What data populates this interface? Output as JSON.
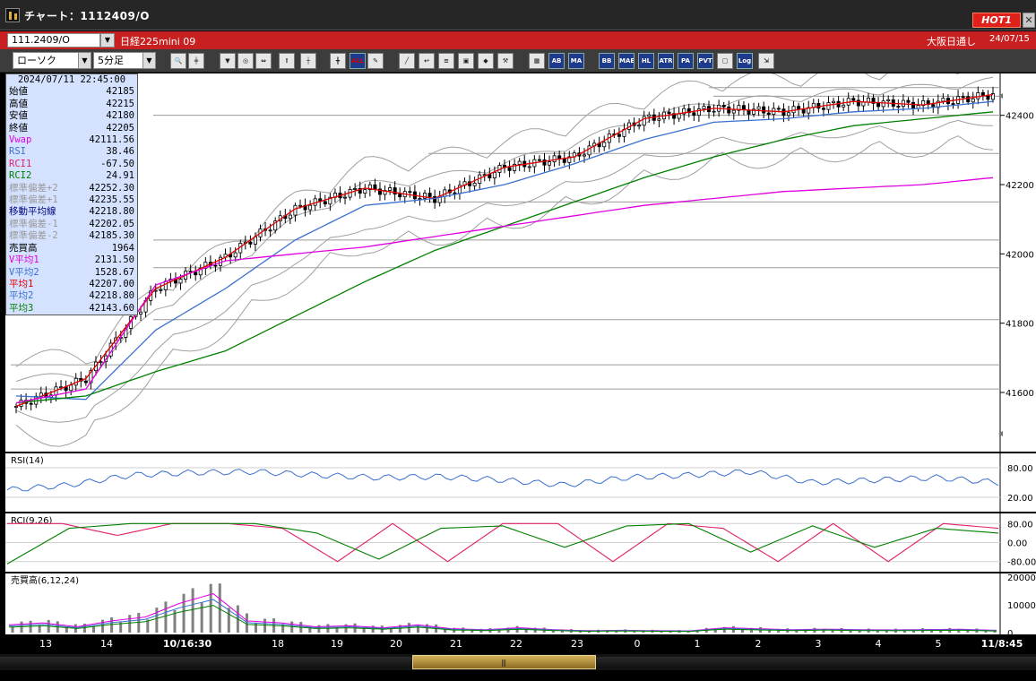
{
  "window": {
    "title": "チャート：1112409/O",
    "hot_badge": "HOT1",
    "close_glyph": "✕"
  },
  "symbol_bar": {
    "code": "111.2409/O",
    "name": "日経225mini 09",
    "session": "大阪日通し",
    "date": "24/07/15"
  },
  "toolbar": {
    "chart_type": "ローソク",
    "period": "5分足",
    "buttons": [
      {
        "name": "zoom-icon",
        "glyph": "🔍"
      },
      {
        "name": "crosshair-icon",
        "glyph": "╪"
      },
      {
        "name": "down-arrow-icon",
        "glyph": "▼"
      },
      {
        "name": "search-chart-icon",
        "glyph": "◎"
      },
      {
        "name": "fit-icon",
        "glyph": "⇔"
      },
      {
        "name": "info-icon",
        "glyph": "!"
      },
      {
        "name": "candle-add-icon",
        "glyph": "┼"
      },
      {
        "name": "candle-remove-icon",
        "glyph": "╋"
      },
      {
        "name": "all-button",
        "glyph": "ALL"
      },
      {
        "name": "pen-icon",
        "glyph": "✎"
      },
      {
        "name": "line-draw-icon",
        "glyph": "╱"
      },
      {
        "name": "return-icon",
        "glyph": "↩"
      },
      {
        "name": "list-icon",
        "glyph": "≡"
      },
      {
        "name": "trash-icon",
        "glyph": "▣"
      },
      {
        "name": "settings-icon",
        "glyph": "◆"
      },
      {
        "name": "tools-icon",
        "glyph": "⚒"
      },
      {
        "name": "color-icon",
        "glyph": "▦"
      },
      {
        "name": "ab-button",
        "glyph": "AB"
      },
      {
        "name": "ma-button",
        "glyph": "MA"
      },
      {
        "name": "bb-button",
        "glyph": "BB"
      },
      {
        "name": "mae-button",
        "glyph": "MAE"
      },
      {
        "name": "hl-button",
        "glyph": "HL"
      },
      {
        "name": "atr-button",
        "glyph": "ATR"
      },
      {
        "name": "para-button",
        "glyph": "PA"
      },
      {
        "name": "pvt-button",
        "glyph": "PVT"
      },
      {
        "name": "frame-button",
        "glyph": "▢"
      },
      {
        "name": "log-button",
        "glyph": "Log"
      },
      {
        "name": "export-icon",
        "glyph": "⇲"
      }
    ]
  },
  "info_box": {
    "datetime": "2024/07/11 22:45:00",
    "rows": [
      {
        "label": "始値",
        "value": "42185",
        "color": "#000000"
      },
      {
        "label": "高値",
        "value": "42215",
        "color": "#000000"
      },
      {
        "label": "安値",
        "value": "42180",
        "color": "#000000"
      },
      {
        "label": "終値",
        "value": "42205",
        "color": "#000000"
      },
      {
        "label": "Vwap",
        "value": "42111.56",
        "color": "#e000e0"
      },
      {
        "label": "RSI",
        "value": "38.46",
        "color": "#3a70d0"
      },
      {
        "label": "RCI1",
        "value": "-67.50",
        "color": "#e0206a"
      },
      {
        "label": "RCI2",
        "value": "24.91",
        "color": "#008000"
      },
      {
        "label": "標準偏差+2",
        "value": "42252.30",
        "color": "#999999"
      },
      {
        "label": "標準偏差+1",
        "value": "42235.55",
        "color": "#999999"
      },
      {
        "label": "移動平均線",
        "value": "42218.80",
        "color": "#000080"
      },
      {
        "label": "標準偏差-1",
        "value": "42202.05",
        "color": "#999999"
      },
      {
        "label": "標準偏差-2",
        "value": "42185.30",
        "color": "#999999"
      },
      {
        "label": "売買高",
        "value": "1964",
        "color": "#000000"
      },
      {
        "label": "V平均1",
        "value": "2131.50",
        "color": "#e000e0"
      },
      {
        "label": "V平均2",
        "value": "1528.67",
        "color": "#3a70d0"
      },
      {
        "label": "平均1",
        "value": "42207.00",
        "color": "#e00000"
      },
      {
        "label": "平均2",
        "value": "42218.80",
        "color": "#3a70d0"
      },
      {
        "label": "平均3",
        "value": "42143.60",
        "color": "#008000"
      }
    ]
  },
  "price_axis": {
    "ticks": [
      "42400",
      "42200",
      "42000",
      "41800",
      "41600"
    ]
  },
  "panels": {
    "rsi": {
      "title": "RSI(14)",
      "ticks": [
        "80.00",
        "20.00"
      ]
    },
    "rci": {
      "title": "RCI(9,26)",
      "ticks": [
        "80.00",
        "0.00",
        "-80.00"
      ]
    },
    "volume": {
      "title": "売買高(6,12,24)",
      "ticks": [
        "20000",
        "10000",
        "0"
      ]
    }
  },
  "x_axis": {
    "labels": [
      {
        "text": "13",
        "bold": false
      },
      {
        "text": "14",
        "bold": false
      },
      {
        "text": "10/16:30",
        "bold": true
      },
      {
        "text": "18",
        "bold": false
      },
      {
        "text": "19",
        "bold": false
      },
      {
        "text": "20",
        "bold": false
      },
      {
        "text": "21",
        "bold": false
      },
      {
        "text": "22",
        "bold": false
      },
      {
        "text": "23",
        "bold": false
      },
      {
        "text": "0",
        "bold": false
      },
      {
        "text": "1",
        "bold": false
      },
      {
        "text": "2",
        "bold": false
      },
      {
        "text": "3",
        "bold": false
      },
      {
        "text": "4",
        "bold": false
      },
      {
        "text": "5",
        "bold": false
      },
      {
        "text": "11/8:45",
        "bold": true
      }
    ]
  },
  "colors": {
    "up": "#ffffff",
    "down": "#000000",
    "ma1": "#e00000",
    "ma2": "#3a70d0",
    "ma3": "#008000",
    "vwap": "#e000e0",
    "bb": "#a0a0a0",
    "rci1": "#e0206a",
    "rci2": "#008000",
    "rsi": "#3a70d0",
    "volbar": "#808080"
  },
  "chart_data": [
    {
      "type": "candlestick",
      "title": "",
      "y_range": [
        41450,
        42500
      ],
      "y_ticks": [
        41600,
        41800,
        42000,
        42200,
        42400
      ],
      "x_labels": [
        "13",
        "14",
        "10/16:30",
        "18",
        "19",
        "20",
        "21",
        "22",
        "23",
        "0",
        "1",
        "2",
        "3",
        "4",
        "5",
        "11/8:45"
      ],
      "series": [
        {
          "name": "平均1",
          "values": [
            41560,
            41640,
            41900,
            41990,
            42130,
            42190,
            42160,
            42250,
            42280,
            42390,
            42420,
            42410,
            42440,
            42430,
            42460
          ]
        },
        {
          "name": "平均2",
          "values": [
            41590,
            41580,
            41780,
            41900,
            42040,
            42140,
            42160,
            42200,
            42260,
            42330,
            42380,
            42390,
            42410,
            42420,
            42440
          ]
        },
        {
          "name": "平均3",
          "values": [
            41570,
            41590,
            41660,
            41720,
            41820,
            41920,
            42010,
            42080,
            42150,
            42220,
            42280,
            42330,
            42370,
            42390,
            42410
          ]
        },
        {
          "name": "Vwap",
          "values": [
            41570,
            41610,
            41910,
            41980,
            42000,
            42020,
            42050,
            42080,
            42110,
            42140,
            42160,
            42180,
            42190,
            42200,
            42220
          ]
        }
      ]
    },
    {
      "type": "line",
      "title": "RSI(14)",
      "y_range": [
        0,
        100
      ],
      "series": [
        {
          "name": "RSI",
          "values": [
            35,
            45,
            65,
            70,
            72,
            65,
            60,
            62,
            55,
            45,
            60,
            65,
            72,
            50,
            55,
            60,
            50
          ]
        }
      ]
    },
    {
      "type": "line",
      "title": "RCI(9,26)",
      "y_range": [
        -100,
        100
      ],
      "series": [
        {
          "name": "RCI1",
          "values": [
            80,
            80,
            30,
            80,
            80,
            60,
            -80,
            80,
            -80,
            80,
            80,
            -80,
            80,
            60,
            -80,
            80,
            -80,
            80,
            60
          ]
        },
        {
          "name": "RCI2",
          "values": [
            -90,
            60,
            80,
            80,
            80,
            40,
            -70,
            60,
            70,
            -20,
            70,
            80,
            -40,
            70,
            -20,
            60,
            40
          ]
        }
      ]
    },
    {
      "type": "bar",
      "title": "売買高(6,12,24)",
      "y_range": [
        0,
        20000
      ],
      "values": [
        4000,
        5000,
        3000,
        6000,
        8000,
        15000,
        20000,
        6000,
        5000,
        3000,
        3500,
        2500,
        4000,
        2000,
        1500,
        2500,
        1500,
        1000,
        1200,
        1000,
        900,
        2500,
        2000,
        1500,
        1800,
        1500,
        1400,
        1600,
        1700,
        1200
      ]
    }
  ]
}
